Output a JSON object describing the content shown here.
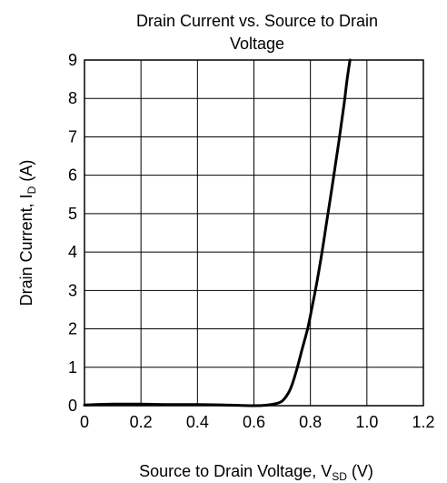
{
  "chart_data": {
    "type": "line",
    "title_lines": [
      "Drain Current vs. Source to Drain",
      "Voltage"
    ],
    "xlabel": {
      "main": "Source to Drain Voltage, V",
      "sub": "SD",
      "suffix": " (V)"
    },
    "ylabel": {
      "main": "Drain Current, I",
      "sub": "D",
      "suffix": " (A)"
    },
    "xlim": [
      0,
      1.2
    ],
    "ylim": [
      0,
      9
    ],
    "x_ticks": [
      {
        "value": 0,
        "label": "0"
      },
      {
        "value": 0.2,
        "label": "0.2"
      },
      {
        "value": 0.4,
        "label": "0.4"
      },
      {
        "value": 0.6,
        "label": "0.6"
      },
      {
        "value": 0.8,
        "label": "0.8"
      },
      {
        "value": 1.0,
        "label": "1.0"
      },
      {
        "value": 1.2,
        "label": "1.2"
      }
    ],
    "y_ticks": [
      {
        "value": 0,
        "label": "0"
      },
      {
        "value": 1,
        "label": "1"
      },
      {
        "value": 2,
        "label": "2"
      },
      {
        "value": 3,
        "label": "3"
      },
      {
        "value": 4,
        "label": "4"
      },
      {
        "value": 5,
        "label": "5"
      },
      {
        "value": 6,
        "label": "6"
      },
      {
        "value": 7,
        "label": "7"
      },
      {
        "value": 8,
        "label": "8"
      },
      {
        "value": 9,
        "label": "9"
      }
    ],
    "grid": true,
    "series": [
      {
        "color": "#000000",
        "x": [
          0.0,
          0.1,
          0.2,
          0.3,
          0.4,
          0.5,
          0.6,
          0.65,
          0.69,
          0.71,
          0.73,
          0.75,
          0.77,
          0.79,
          0.8,
          0.82,
          0.84,
          0.86,
          0.88,
          0.9,
          0.92,
          0.93,
          0.94
        ],
        "y": [
          0.02,
          0.04,
          0.04,
          0.03,
          0.03,
          0.02,
          0.0,
          0.02,
          0.08,
          0.2,
          0.45,
          0.9,
          1.45,
          2.0,
          2.35,
          3.1,
          3.95,
          4.9,
          5.85,
          6.85,
          7.9,
          8.5,
          9.0
        ]
      }
    ]
  }
}
